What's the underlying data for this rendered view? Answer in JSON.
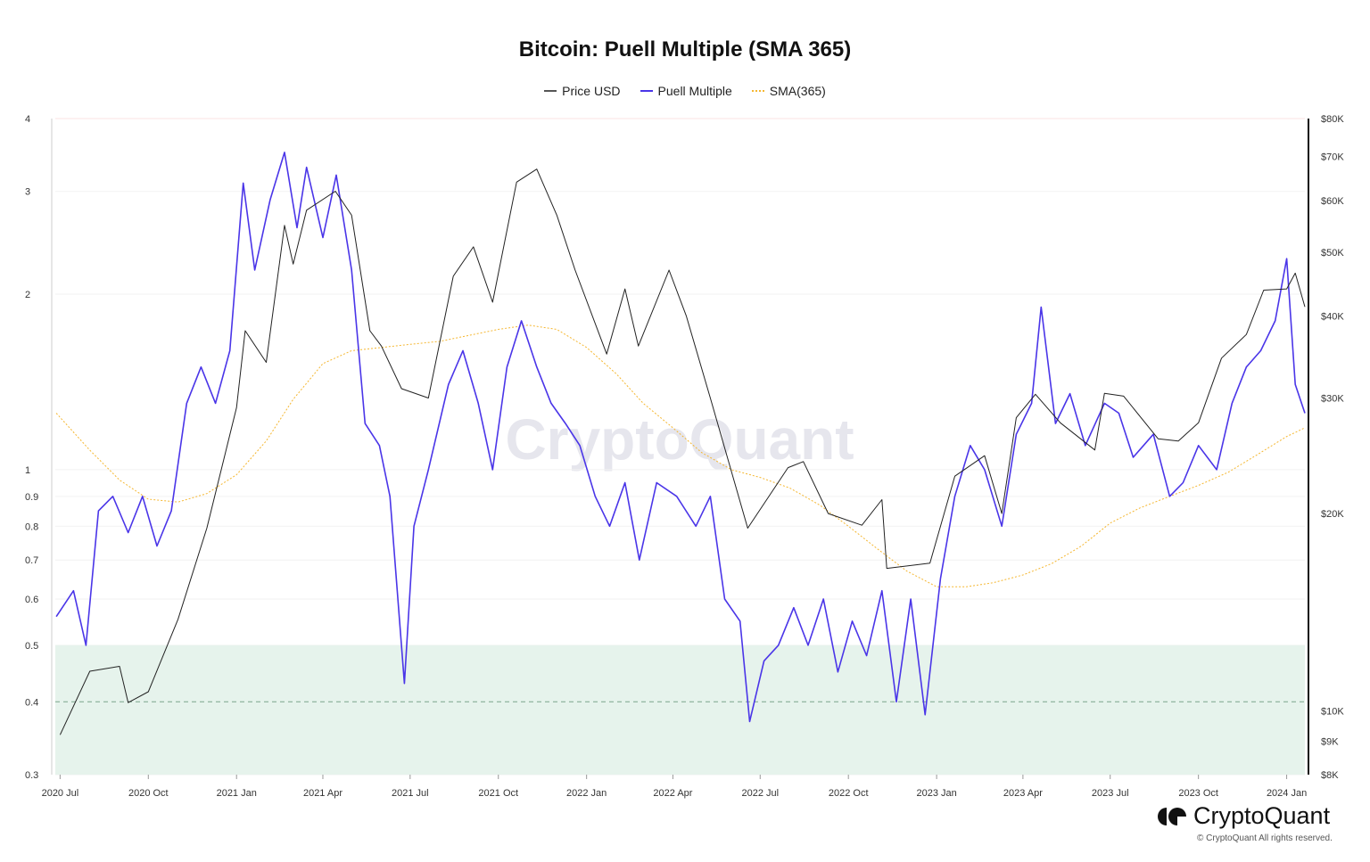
{
  "chart_data": {
    "type": "line",
    "title": "Bitcoin: Puell Multiple (SMA 365)",
    "legend": [
      "Price USD",
      "Puell Multiple",
      "SMA(365)"
    ],
    "legend_placement": "top",
    "colors": {
      "price": "#222222",
      "puell": "#4a35e8",
      "sma": "#f5b731",
      "zone": "#e6f3ec",
      "zone_line": "#7aa58c"
    },
    "x_ticks": [
      "2020 Jul",
      "2020 Oct",
      "2021 Jan",
      "2021 Apr",
      "2021 Jul",
      "2021 Oct",
      "2022 Jan",
      "2022 Apr",
      "2022 Jul",
      "2022 Oct",
      "2023 Jan",
      "2023 Apr",
      "2023 Jul",
      "2023 Oct",
      "2024 Jan"
    ],
    "x_tick_dates": [
      "2020-07-01",
      "2020-10-01",
      "2021-01-01",
      "2021-04-01",
      "2021-07-01",
      "2021-10-01",
      "2022-01-01",
      "2022-04-01",
      "2022-07-01",
      "2022-10-01",
      "2023-01-01",
      "2023-04-01",
      "2023-07-01",
      "2023-10-01",
      "2024-01-01"
    ],
    "xlim": [
      "2020-06-26",
      "2024-01-20"
    ],
    "y_left": {
      "scale": "log",
      "ylim": [
        0.3,
        4
      ],
      "ticks": [
        "4",
        "3",
        "2",
        "1",
        "0.9",
        "0.8",
        "0.7",
        "0.6",
        "0.5",
        "0.4",
        "0.3"
      ],
      "tick_values": [
        4,
        3,
        2,
        1,
        0.9,
        0.8,
        0.7,
        0.6,
        0.5,
        0.4,
        0.3
      ]
    },
    "y_right": {
      "scale": "log",
      "ylim": [
        8000,
        80000
      ],
      "ticks": [
        "$80K",
        "$70K",
        "$60K",
        "$50K",
        "$40K",
        "$30K",
        "$20K",
        "$10K",
        "$9K",
        "$8K"
      ],
      "tick_values": [
        80000,
        70000,
        60000,
        50000,
        40000,
        30000,
        20000,
        10000,
        9000,
        8000
      ]
    },
    "zone": {
      "from": 0.3,
      "to": 0.5,
      "dashed_line": 0.4
    },
    "grid": true,
    "series": [
      {
        "name": "Price USD",
        "axis": "right",
        "points": [
          [
            "2020-07-01",
            9200
          ],
          [
            "2020-08-01",
            11500
          ],
          [
            "2020-09-01",
            11700
          ],
          [
            "2020-09-10",
            10300
          ],
          [
            "2020-10-01",
            10700
          ],
          [
            "2020-11-01",
            13800
          ],
          [
            "2020-12-01",
            19000
          ],
          [
            "2021-01-01",
            29000
          ],
          [
            "2021-01-10",
            38000
          ],
          [
            "2021-02-01",
            34000
          ],
          [
            "2021-02-20",
            55000
          ],
          [
            "2021-03-01",
            48000
          ],
          [
            "2021-03-15",
            58000
          ],
          [
            "2021-04-14",
            62000
          ],
          [
            "2021-05-01",
            57000
          ],
          [
            "2021-05-20",
            38000
          ],
          [
            "2021-06-01",
            36000
          ],
          [
            "2021-06-22",
            31000
          ],
          [
            "2021-07-20",
            30000
          ],
          [
            "2021-08-15",
            46000
          ],
          [
            "2021-09-05",
            51000
          ],
          [
            "2021-09-25",
            42000
          ],
          [
            "2021-10-20",
            64000
          ],
          [
            "2021-11-10",
            67000
          ],
          [
            "2021-12-01",
            57000
          ],
          [
            "2021-12-20",
            47000
          ],
          [
            "2022-01-22",
            35000
          ],
          [
            "2022-02-10",
            44000
          ],
          [
            "2022-02-24",
            36000
          ],
          [
            "2022-03-28",
            47000
          ],
          [
            "2022-04-15",
            40000
          ],
          [
            "2022-05-10",
            30000
          ],
          [
            "2022-06-18",
            19000
          ],
          [
            "2022-07-30",
            23500
          ],
          [
            "2022-08-15",
            24000
          ],
          [
            "2022-09-10",
            20000
          ],
          [
            "2022-10-15",
            19200
          ],
          [
            "2022-11-05",
            21000
          ],
          [
            "2022-11-10",
            16500
          ],
          [
            "2022-12-25",
            16800
          ],
          [
            "2023-01-20",
            22800
          ],
          [
            "2023-02-20",
            24500
          ],
          [
            "2023-03-10",
            20000
          ],
          [
            "2023-03-25",
            28000
          ],
          [
            "2023-04-14",
            30400
          ],
          [
            "2023-05-10",
            27500
          ],
          [
            "2023-06-15",
            25000
          ],
          [
            "2023-06-25",
            30500
          ],
          [
            "2023-07-15",
            30200
          ],
          [
            "2023-08-20",
            26000
          ],
          [
            "2023-09-10",
            25800
          ],
          [
            "2023-10-01",
            27500
          ],
          [
            "2023-10-25",
            34500
          ],
          [
            "2023-11-20",
            37500
          ],
          [
            "2023-12-08",
            43800
          ],
          [
            "2024-01-01",
            44000
          ],
          [
            "2024-01-10",
            46500
          ],
          [
            "2024-01-20",
            41300
          ]
        ]
      },
      {
        "name": "Puell Multiple",
        "axis": "left",
        "points": [
          [
            "2020-06-27",
            0.56
          ],
          [
            "2020-07-15",
            0.62
          ],
          [
            "2020-07-28",
            0.5
          ],
          [
            "2020-08-10",
            0.85
          ],
          [
            "2020-08-25",
            0.9
          ],
          [
            "2020-09-10",
            0.78
          ],
          [
            "2020-09-25",
            0.9
          ],
          [
            "2020-10-10",
            0.74
          ],
          [
            "2020-10-25",
            0.85
          ],
          [
            "2020-11-10",
            1.3
          ],
          [
            "2020-11-25",
            1.5
          ],
          [
            "2020-12-10",
            1.3
          ],
          [
            "2020-12-25",
            1.6
          ],
          [
            "2021-01-08",
            3.1
          ],
          [
            "2021-01-20",
            2.2
          ],
          [
            "2021-02-05",
            2.9
          ],
          [
            "2021-02-20",
            3.5
          ],
          [
            "2021-03-05",
            2.6
          ],
          [
            "2021-03-15",
            3.3
          ],
          [
            "2021-04-01",
            2.5
          ],
          [
            "2021-04-15",
            3.2
          ],
          [
            "2021-05-01",
            2.2
          ],
          [
            "2021-05-15",
            1.2
          ],
          [
            "2021-05-30",
            1.1
          ],
          [
            "2021-06-10",
            0.9
          ],
          [
            "2021-06-25",
            0.43
          ],
          [
            "2021-07-05",
            0.8
          ],
          [
            "2021-07-20",
            1.0
          ],
          [
            "2021-08-10",
            1.4
          ],
          [
            "2021-08-25",
            1.6
          ],
          [
            "2021-09-10",
            1.3
          ],
          [
            "2021-09-25",
            1.0
          ],
          [
            "2021-10-10",
            1.5
          ],
          [
            "2021-10-25",
            1.8
          ],
          [
            "2021-11-10",
            1.5
          ],
          [
            "2021-11-25",
            1.3
          ],
          [
            "2021-12-10",
            1.2
          ],
          [
            "2021-12-25",
            1.1
          ],
          [
            "2022-01-10",
            0.9
          ],
          [
            "2022-01-25",
            0.8
          ],
          [
            "2022-02-10",
            0.95
          ],
          [
            "2022-02-25",
            0.7
          ],
          [
            "2022-03-15",
            0.95
          ],
          [
            "2022-04-05",
            0.9
          ],
          [
            "2022-04-25",
            0.8
          ],
          [
            "2022-05-10",
            0.9
          ],
          [
            "2022-05-25",
            0.6
          ],
          [
            "2022-06-10",
            0.55
          ],
          [
            "2022-06-20",
            0.37
          ],
          [
            "2022-07-05",
            0.47
          ],
          [
            "2022-07-20",
            0.5
          ],
          [
            "2022-08-05",
            0.58
          ],
          [
            "2022-08-20",
            0.5
          ],
          [
            "2022-09-05",
            0.6
          ],
          [
            "2022-09-20",
            0.45
          ],
          [
            "2022-10-05",
            0.55
          ],
          [
            "2022-10-20",
            0.48
          ],
          [
            "2022-11-05",
            0.62
          ],
          [
            "2022-11-20",
            0.4
          ],
          [
            "2022-12-05",
            0.6
          ],
          [
            "2022-12-20",
            0.38
          ],
          [
            "2023-01-05",
            0.65
          ],
          [
            "2023-01-20",
            0.9
          ],
          [
            "2023-02-05",
            1.1
          ],
          [
            "2023-02-20",
            1.0
          ],
          [
            "2023-03-10",
            0.8
          ],
          [
            "2023-03-25",
            1.15
          ],
          [
            "2023-04-10",
            1.3
          ],
          [
            "2023-04-20",
            1.9
          ],
          [
            "2023-05-05",
            1.2
          ],
          [
            "2023-05-20",
            1.35
          ],
          [
            "2023-06-05",
            1.1
          ],
          [
            "2023-06-25",
            1.3
          ],
          [
            "2023-07-10",
            1.25
          ],
          [
            "2023-07-25",
            1.05
          ],
          [
            "2023-08-15",
            1.15
          ],
          [
            "2023-09-01",
            0.9
          ],
          [
            "2023-09-15",
            0.95
          ],
          [
            "2023-10-01",
            1.1
          ],
          [
            "2023-10-20",
            1.0
          ],
          [
            "2023-11-05",
            1.3
          ],
          [
            "2023-11-20",
            1.5
          ],
          [
            "2023-12-05",
            1.6
          ],
          [
            "2023-12-20",
            1.8
          ],
          [
            "2024-01-01",
            2.3
          ],
          [
            "2024-01-10",
            1.4
          ],
          [
            "2024-01-20",
            1.25
          ]
        ]
      },
      {
        "name": "SMA(365)",
        "axis": "left",
        "points": [
          [
            "2020-06-27",
            1.25
          ],
          [
            "2020-08-01",
            1.08
          ],
          [
            "2020-09-01",
            0.96
          ],
          [
            "2020-10-01",
            0.89
          ],
          [
            "2020-11-01",
            0.88
          ],
          [
            "2020-12-01",
            0.91
          ],
          [
            "2021-01-01",
            0.98
          ],
          [
            "2021-02-01",
            1.12
          ],
          [
            "2021-03-01",
            1.32
          ],
          [
            "2021-04-01",
            1.52
          ],
          [
            "2021-05-01",
            1.6
          ],
          [
            "2021-06-01",
            1.62
          ],
          [
            "2021-07-01",
            1.64
          ],
          [
            "2021-08-01",
            1.66
          ],
          [
            "2021-09-01",
            1.7
          ],
          [
            "2021-10-01",
            1.74
          ],
          [
            "2021-11-01",
            1.77
          ],
          [
            "2021-12-01",
            1.74
          ],
          [
            "2022-01-01",
            1.62
          ],
          [
            "2022-02-01",
            1.46
          ],
          [
            "2022-03-01",
            1.3
          ],
          [
            "2022-04-01",
            1.18
          ],
          [
            "2022-05-01",
            1.07
          ],
          [
            "2022-06-01",
            1.0
          ],
          [
            "2022-07-01",
            0.97
          ],
          [
            "2022-08-01",
            0.93
          ],
          [
            "2022-09-01",
            0.87
          ],
          [
            "2022-10-01",
            0.8
          ],
          [
            "2022-11-01",
            0.73
          ],
          [
            "2022-12-01",
            0.67
          ],
          [
            "2023-01-01",
            0.63
          ],
          [
            "2023-02-01",
            0.63
          ],
          [
            "2023-03-01",
            0.64
          ],
          [
            "2023-04-01",
            0.66
          ],
          [
            "2023-05-01",
            0.69
          ],
          [
            "2023-06-01",
            0.74
          ],
          [
            "2023-07-01",
            0.81
          ],
          [
            "2023-08-01",
            0.86
          ],
          [
            "2023-09-01",
            0.9
          ],
          [
            "2023-10-01",
            0.94
          ],
          [
            "2023-11-01",
            0.99
          ],
          [
            "2023-12-01",
            1.06
          ],
          [
            "2024-01-01",
            1.14
          ],
          [
            "2024-01-20",
            1.18
          ]
        ]
      }
    ]
  },
  "watermark": "CryptoQuant",
  "logo_text": "CryptoQuant",
  "copyright": "© CryptoQuant All rights reserved."
}
